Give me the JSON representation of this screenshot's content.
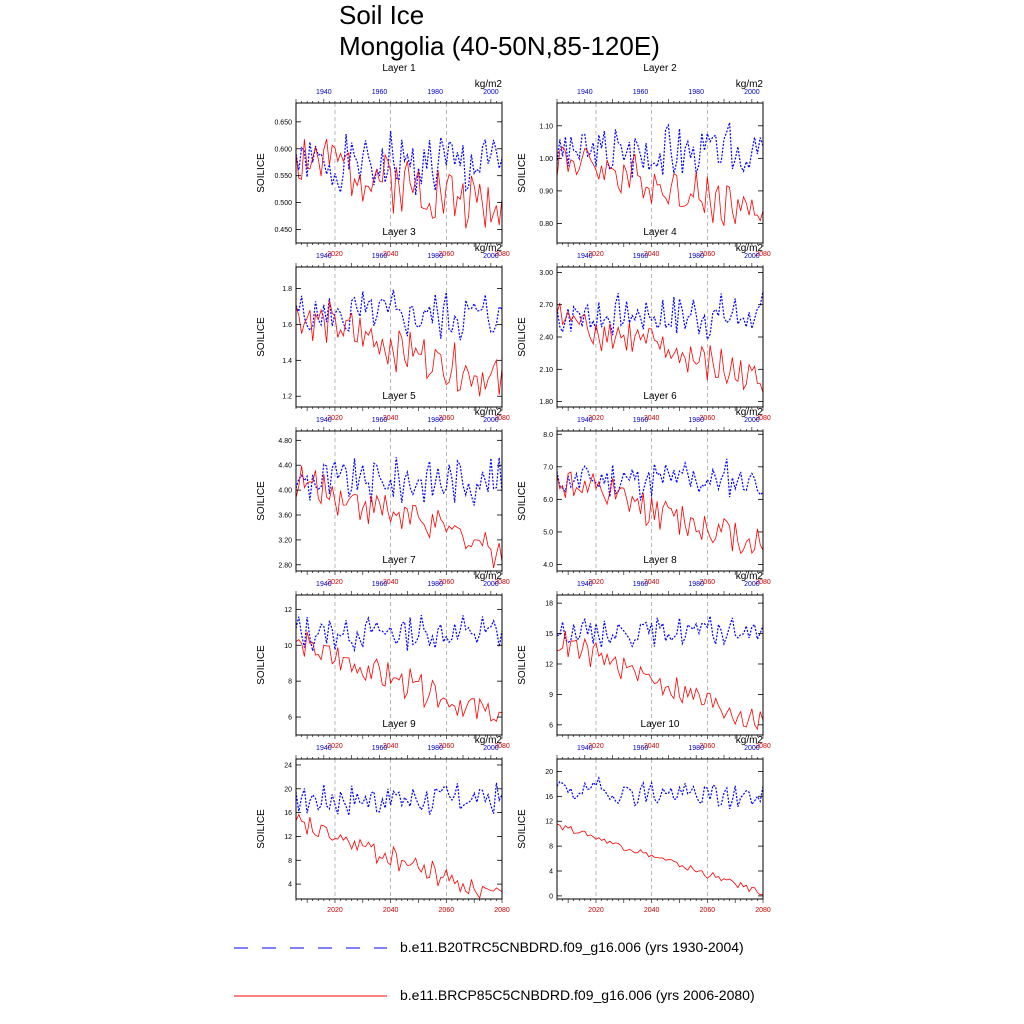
{
  "header": {
    "title_line1": "Soil Ice",
    "title_line2": "Mongolia (40-50N,85-120E)"
  },
  "colors": {
    "historical": "#0000ff",
    "future": "#ff0000",
    "axis": "#000000",
    "gridline": "#888888"
  },
  "legend": {
    "items": [
      {
        "label": "b.e11.B20TRC5CNBDRD.f09_g16.006 (yrs 1930-2004)",
        "color": "#0000ff",
        "style": "dashed"
      },
      {
        "label": "b.e11.BRCP85C5CNBDRD.f09_g16.006 (yrs 2006-2080)",
        "color": "#ff0000",
        "style": "solid"
      }
    ]
  },
  "chart_data": [
    {
      "type": "line",
      "title": "Layer 1",
      "unit": "kg/m2",
      "ylabel": "SOILICE",
      "ylim": [
        0.425,
        0.685
      ],
      "yticks": [
        0.45,
        0.5,
        0.55,
        0.6,
        0.65
      ],
      "ydecimals": 3,
      "top_axis": {
        "label_years": [
          1940,
          1960,
          1980,
          2000
        ],
        "range": [
          1930,
          2004
        ]
      },
      "bottom_axis": {
        "label_years": [
          2020,
          2040,
          2060,
          2080
        ],
        "range": [
          2006,
          2080
        ]
      },
      "series": [
        {
          "name": "historical",
          "mean": 0.57,
          "amp": 0.045,
          "trend": 0,
          "seed": 1
        },
        {
          "name": "future",
          "mean": 0.59,
          "amp": 0.04,
          "trend": -0.1,
          "seed": 2
        }
      ]
    },
    {
      "type": "line",
      "title": "Layer 2",
      "unit": "kg/m2",
      "ylabel": "SOILICE",
      "ylim": [
        0.74,
        1.17
      ],
      "yticks": [
        0.8,
        0.9,
        1.0,
        1.1
      ],
      "ydecimals": 2,
      "top_axis": {
        "label_years": [
          1940,
          1960,
          1980,
          2000
        ],
        "range": [
          1930,
          2004
        ]
      },
      "bottom_axis": {
        "label_years": [
          2020,
          2040,
          2060,
          2080
        ],
        "range": [
          2006,
          2080
        ]
      },
      "series": [
        {
          "name": "historical",
          "mean": 1.02,
          "amp": 0.06,
          "trend": 0,
          "seed": 3
        },
        {
          "name": "future",
          "mean": 1.01,
          "amp": 0.05,
          "trend": -0.18,
          "seed": 4
        }
      ]
    },
    {
      "type": "line",
      "title": "Layer 3",
      "unit": "kg/m2",
      "ylabel": "SOILICE",
      "ylim": [
        1.14,
        1.92
      ],
      "yticks": [
        1.2,
        1.4,
        1.6,
        1.8
      ],
      "ydecimals": 1,
      "top_axis": {
        "label_years": [
          1940,
          1960,
          1980,
          2000
        ],
        "range": [
          1930,
          2004
        ]
      },
      "bottom_axis": {
        "label_years": [
          2020,
          2040,
          2060,
          2080
        ],
        "range": [
          2006,
          2080
        ]
      },
      "series": [
        {
          "name": "historical",
          "mean": 1.65,
          "amp": 0.1,
          "trend": 0,
          "seed": 5
        },
        {
          "name": "future",
          "mean": 1.66,
          "amp": 0.09,
          "trend": -0.38,
          "seed": 6
        }
      ]
    },
    {
      "type": "line",
      "title": "Layer 4",
      "unit": "kg/m2",
      "ylabel": "SOILICE",
      "ylim": [
        1.75,
        3.05
      ],
      "yticks": [
        1.8,
        2.1,
        2.4,
        2.7,
        3.0
      ],
      "ydecimals": 2,
      "top_axis": {
        "label_years": [
          1940,
          1960,
          1980,
          2000
        ],
        "range": [
          1930,
          2004
        ]
      },
      "bottom_axis": {
        "label_years": [
          2020,
          2040,
          2060,
          2080
        ],
        "range": [
          2006,
          2080
        ]
      },
      "series": [
        {
          "name": "historical",
          "mean": 2.6,
          "amp": 0.16,
          "trend": 0,
          "seed": 7
        },
        {
          "name": "future",
          "mean": 2.6,
          "amp": 0.14,
          "trend": -0.62,
          "seed": 8
        }
      ]
    },
    {
      "type": "line",
      "title": "Layer 5",
      "unit": "kg/m2",
      "ylabel": "SOILICE",
      "ylim": [
        2.7,
        4.95
      ],
      "yticks": [
        2.8,
        3.2,
        3.6,
        4.0,
        4.4,
        4.8
      ],
      "ydecimals": 2,
      "top_axis": {
        "label_years": [
          1940,
          1960,
          1980,
          2000
        ],
        "range": [
          1930,
          2004
        ]
      },
      "bottom_axis": {
        "label_years": [
          2020,
          2040,
          2060,
          2080
        ],
        "range": [
          2006,
          2080
        ]
      },
      "series": [
        {
          "name": "historical",
          "mean": 4.15,
          "amp": 0.25,
          "trend": 0,
          "seed": 9
        },
        {
          "name": "future",
          "mean": 4.15,
          "amp": 0.22,
          "trend": -1.1,
          "seed": 10
        }
      ]
    },
    {
      "type": "line",
      "title": "Layer 6",
      "unit": "kg/m2",
      "ylabel": "SOILICE",
      "ylim": [
        3.8,
        8.1
      ],
      "yticks": [
        4.0,
        5.0,
        6.0,
        7.0,
        8.0
      ],
      "ydecimals": 1,
      "top_axis": {
        "label_years": [
          1940,
          1960,
          1980,
          2000
        ],
        "range": [
          1930,
          2004
        ]
      },
      "bottom_axis": {
        "label_years": [
          2020,
          2040,
          2060,
          2080
        ],
        "range": [
          2006,
          2080
        ]
      },
      "series": [
        {
          "name": "historical",
          "mean": 6.6,
          "amp": 0.45,
          "trend": 0,
          "seed": 11
        },
        {
          "name": "future",
          "mean": 6.6,
          "amp": 0.4,
          "trend": -2.0,
          "seed": 12
        }
      ]
    },
    {
      "type": "line",
      "title": "Layer 7",
      "unit": "kg/m2",
      "ylabel": "SOILICE",
      "ylim": [
        5.0,
        12.8
      ],
      "yticks": [
        6,
        8,
        10,
        12
      ],
      "ydecimals": 0,
      "top_axis": {
        "label_years": [
          1940,
          1960,
          1980,
          2000
        ],
        "range": [
          1930,
          2004
        ]
      },
      "bottom_axis": {
        "label_years": [
          2020,
          2040,
          2060,
          2080
        ],
        "range": [
          2006,
          2080
        ]
      },
      "series": [
        {
          "name": "historical",
          "mean": 10.7,
          "amp": 0.7,
          "trend": 0,
          "seed": 13
        },
        {
          "name": "future",
          "mean": 10.1,
          "amp": 0.6,
          "trend": -4.2,
          "seed": 14
        }
      ]
    },
    {
      "type": "line",
      "title": "Layer 8",
      "unit": "kg/m2",
      "ylabel": "SOILICE",
      "ylim": [
        5.0,
        18.8
      ],
      "yticks": [
        6,
        9,
        12,
        15,
        18
      ],
      "ydecimals": 0,
      "top_axis": {
        "label_years": [
          1940,
          1960,
          1980,
          2000
        ],
        "range": [
          1930,
          2004
        ]
      },
      "bottom_axis": {
        "label_years": [
          2020,
          2040,
          2060,
          2080
        ],
        "range": [
          2006,
          2080
        ]
      },
      "series": [
        {
          "name": "historical",
          "mean": 15.2,
          "amp": 1.0,
          "trend": 0,
          "seed": 15
        },
        {
          "name": "future",
          "mean": 14.3,
          "amp": 0.9,
          "trend": -8.2,
          "seed": 16
        }
      ]
    },
    {
      "type": "line",
      "title": "Layer 9",
      "unit": "kg/m2",
      "ylabel": "SOILICE",
      "ylim": [
        1.5,
        25.0
      ],
      "yticks": [
        4,
        8,
        12,
        16,
        20,
        24
      ],
      "ydecimals": 0,
      "top_axis": {
        "label_years": [
          1940,
          1960,
          1980,
          2000
        ],
        "range": [
          1930,
          2004
        ]
      },
      "bottom_axis": {
        "label_years": [
          2020,
          2040,
          2060,
          2080
        ],
        "range": [
          2006,
          2080
        ]
      },
      "series": [
        {
          "name": "historical",
          "mean": 18.3,
          "amp": 1.9,
          "trend": 0,
          "seed": 17
        },
        {
          "name": "future",
          "mean": 14.2,
          "amp": 1.4,
          "trend": -12.5,
          "seed": 18
        }
      ]
    },
    {
      "type": "line",
      "title": "Layer 10",
      "unit": "kg/m2",
      "ylabel": "SOILICE",
      "ylim": [
        -0.5,
        22.0
      ],
      "yticks": [
        0,
        4,
        8,
        12,
        16,
        20
      ],
      "ydecimals": 0,
      "top_axis": {
        "label_years": [
          1940,
          1960,
          1980,
          2000
        ],
        "range": [
          1930,
          2004
        ]
      },
      "bottom_axis": {
        "label_years": [
          2020,
          2040,
          2060,
          2080
        ],
        "range": [
          2006,
          2080
        ]
      },
      "series": [
        {
          "name": "historical",
          "mean": 17.2,
          "amp": 1.5,
          "trend": -1.5,
          "seed": 19
        },
        {
          "name": "future",
          "mean": 11.5,
          "amp": 0.4,
          "trend": -11.0,
          "seed": 20
        }
      ]
    }
  ]
}
